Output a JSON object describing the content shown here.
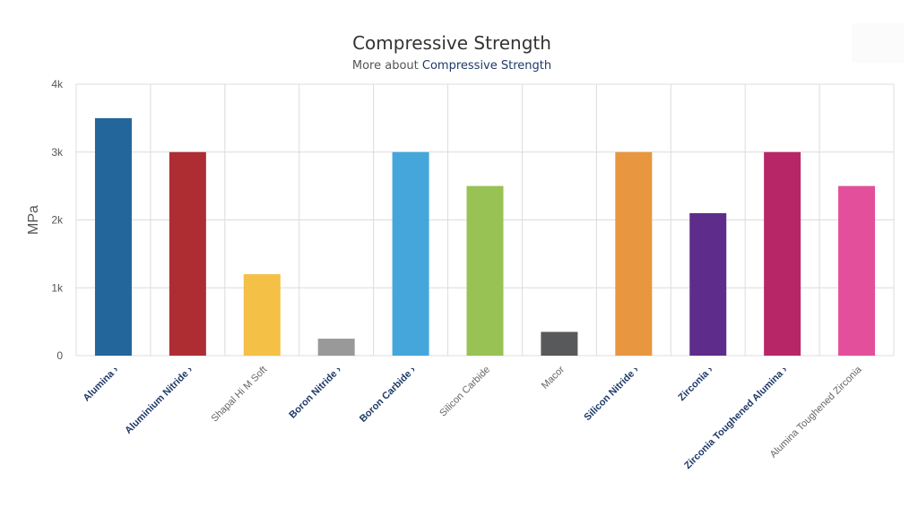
{
  "title": "Compressive Strength",
  "subtitle": {
    "prefix": "More about ",
    "link": "Compressive Strength"
  },
  "chart_data": {
    "type": "bar",
    "title": "Compressive Strength",
    "subtitle": "More about Compressive Strength",
    "xlabel": "",
    "ylabel": "MPa",
    "ylim": [
      0,
      4000
    ],
    "yticks": [
      0,
      1000,
      2000,
      3000,
      4000
    ],
    "ytick_labels": [
      "0",
      "1k",
      "2k",
      "3k",
      "4k"
    ],
    "grid": true,
    "legend": "none",
    "categories": [
      "Alumina",
      "Aluminium Nitride",
      "Shapal Hi M Soft",
      "Boron Nitride",
      "Boron Carbide",
      "Silicon Carbide",
      "Macor",
      "Silicon Nitride",
      "Zirconia",
      "Zirconia Toughened Alumina",
      "Alumina Toughened Zirconia"
    ],
    "category_is_link": [
      true,
      true,
      false,
      true,
      true,
      false,
      false,
      true,
      true,
      true,
      false
    ],
    "link_marker": "›",
    "values": [
      3500,
      3000,
      1200,
      250,
      3000,
      2500,
      350,
      3000,
      2100,
      3000,
      2500
    ],
    "colors": [
      "#23669c",
      "#ae2d33",
      "#f4c046",
      "#999999",
      "#45a6dc",
      "#98c254",
      "#58595b",
      "#e8963f",
      "#5e2d8b",
      "#b72768",
      "#e44f9c"
    ]
  }
}
